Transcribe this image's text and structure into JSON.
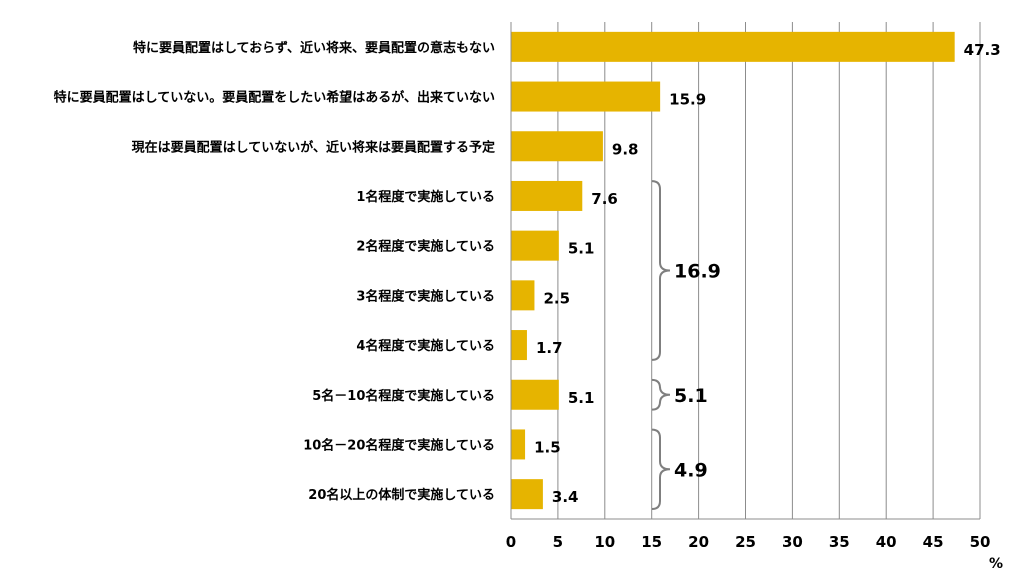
{
  "chart_data": {
    "type": "bar",
    "orientation": "horizontal",
    "categories": [
      "特に要員配置はしておらず、近い将来、要員配置の意志もない",
      "特に要員配置はしていない。要員配置をしたい希望はあるが、出来ていない",
      "現在は要員配置はしていないが、近い将来は要員配置する予定",
      "1名程度で実施している",
      "2名程度で実施している",
      "3名程度で実施している",
      "4名程度で実施している",
      "5名－10名程度で実施している",
      "10名－20名程度で実施している",
      "20名以上の体制で実施している"
    ],
    "values": [
      47.3,
      15.9,
      9.8,
      7.6,
      5.1,
      2.5,
      1.7,
      5.1,
      1.5,
      3.4
    ],
    "value_labels": [
      "47.3",
      "15.9",
      "9.8",
      "7.6",
      "5.1",
      "2.5",
      "1.7",
      "5.1",
      "1.5",
      "3.4"
    ],
    "xlim": [
      0,
      50
    ],
    "xticks": [
      "0",
      "5",
      "10",
      "15",
      "20",
      "25",
      "30",
      "35",
      "40",
      "45",
      "50"
    ],
    "xlabel": "%",
    "grid": "vertical",
    "bar_color": "#E6B400",
    "groups": [
      {
        "from": 3,
        "to": 6,
        "total": "16.9"
      },
      {
        "from": 7,
        "to": 7,
        "total": "5.1"
      },
      {
        "from": 8,
        "to": 9,
        "total": "4.9"
      }
    ]
  }
}
